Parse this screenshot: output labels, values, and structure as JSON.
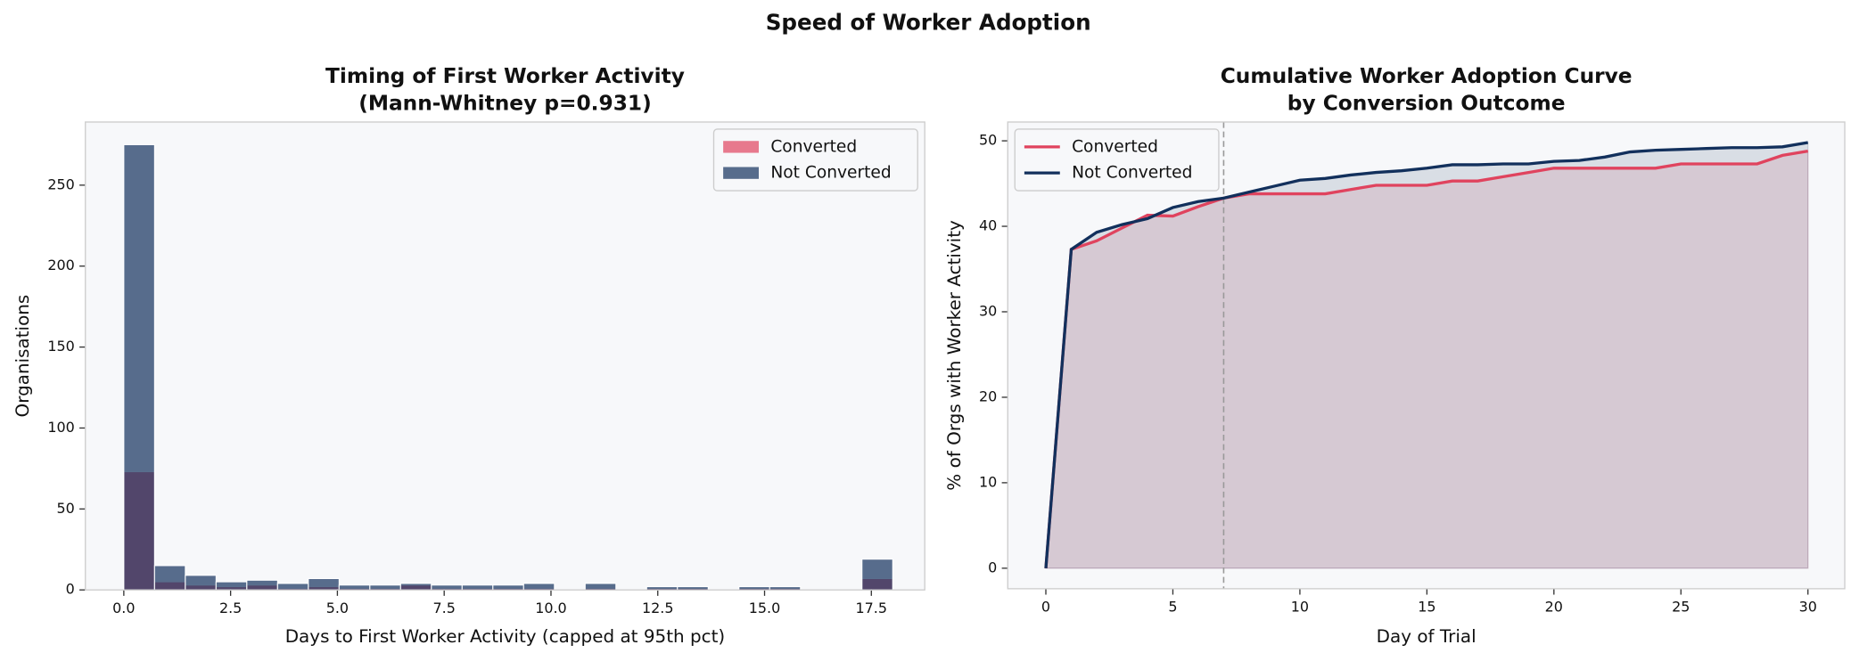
{
  "title": "Speed of Worker Adoption",
  "chart_data": [
    {
      "type": "histogram",
      "title": [
        "Timing of First Worker Activity",
        "(Mann-Whitney p=0.931)"
      ],
      "xlabel": "Days to First Worker Activity (capped at 95th pct)",
      "ylabel": "Organisations",
      "bins": [
        0,
        0.72,
        1.44,
        2.16,
        2.88,
        3.6,
        4.32,
        5.04,
        5.76,
        6.48,
        7.2,
        7.92,
        8.64,
        9.36,
        10.08,
        10.8,
        11.52,
        12.24,
        12.96,
        13.68,
        14.4,
        15.12,
        15.84,
        16.56,
        17.28,
        18
      ],
      "series": [
        {
          "name": "Converted",
          "color": "#e0435e",
          "values": [
            73,
            5,
            3,
            2,
            3,
            1,
            2,
            1,
            1,
            3,
            1,
            1,
            1,
            1,
            0,
            1,
            0,
            1,
            1,
            0,
            1,
            1,
            0,
            0,
            7
          ]
        },
        {
          "name": "Not Converted",
          "color": "#12305c",
          "values": [
            275,
            15,
            9,
            5,
            6,
            4,
            7,
            3,
            3,
            4,
            3,
            3,
            3,
            4,
            0,
            4,
            0,
            2,
            2,
            0,
            2,
            2,
            0,
            0,
            19
          ]
        }
      ],
      "xlim": [
        -0.9,
        18.75
      ],
      "ylim": [
        0,
        289
      ],
      "xticks": [
        {
          "value": 0,
          "label": "0.0"
        },
        2.5,
        {
          "value": 5,
          "label": "5.0"
        },
        7.5,
        {
          "value": 10,
          "label": "10.0"
        },
        12.5,
        {
          "value": 15,
          "label": "15.0"
        },
        17.5
      ],
      "yticks": [
        0,
        50,
        100,
        150,
        200,
        250
      ],
      "legend": "upper right",
      "grid": false
    },
    {
      "type": "line",
      "title": [
        "Cumulative Worker Adoption Curve",
        "by Conversion Outcome"
      ],
      "xlabel": "Day of Trial",
      "ylabel": "% of Orgs with Worker Activity",
      "x": [
        0,
        1,
        2,
        3,
        4,
        5,
        6,
        7,
        8,
        9,
        10,
        11,
        12,
        13,
        14,
        15,
        16,
        17,
        18,
        19,
        20,
        21,
        22,
        23,
        24,
        25,
        26,
        27,
        28,
        29,
        30
      ],
      "series": [
        {
          "name": "Converted",
          "color": "#e0435e",
          "values": [
            0,
            37.3,
            38.3,
            39.8,
            41.3,
            41.2,
            42.3,
            43.3,
            43.8,
            43.8,
            43.8,
            43.8,
            44.3,
            44.8,
            44.8,
            44.8,
            45.3,
            45.3,
            45.8,
            46.3,
            46.8,
            46.8,
            46.8,
            46.8,
            46.8,
            47.3,
            47.3,
            47.3,
            47.3,
            48.3,
            48.8
          ]
        },
        {
          "name": "Not Converted",
          "color": "#12305c",
          "values": [
            0,
            37.3,
            39.3,
            40.2,
            40.9,
            42.2,
            42.9,
            43.3,
            44.0,
            44.7,
            45.4,
            45.6,
            46.0,
            46.3,
            46.5,
            46.8,
            47.2,
            47.2,
            47.3,
            47.3,
            47.6,
            47.7,
            48.1,
            48.7,
            48.9,
            49.0,
            49.1,
            49.2,
            49.2,
            49.3,
            49.8
          ]
        }
      ],
      "vline": 7,
      "xlim": [
        -1.5,
        31.45
      ],
      "ylim": [
        -2.4,
        52.2
      ],
      "xticks": [
        0,
        5,
        10,
        15,
        20,
        25,
        30
      ],
      "yticks": [
        0,
        10,
        20,
        30,
        40,
        50
      ],
      "legend": "upper left",
      "grid": false
    }
  ]
}
